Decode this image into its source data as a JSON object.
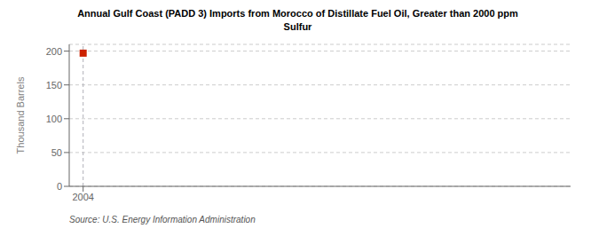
{
  "chart_data": {
    "type": "scatter",
    "title": "Annual Gulf Coast (PADD 3) Imports from Morocco of Distillate Fuel Oil, Greater than 2000 ppm\nSulfur",
    "ylabel": "Thousand Barrels",
    "source": "Source: U.S. Energy Information Administration",
    "x": [
      2004
    ],
    "values": [
      197
    ],
    "color": "#cc2200",
    "marker": "square",
    "xlim": [
      2003.4,
      2025
    ],
    "xticks": [
      2004
    ],
    "ylim": [
      0,
      210
    ],
    "yticks": [
      0,
      50,
      100,
      150,
      200
    ],
    "grid": true,
    "vline": 2004
  }
}
